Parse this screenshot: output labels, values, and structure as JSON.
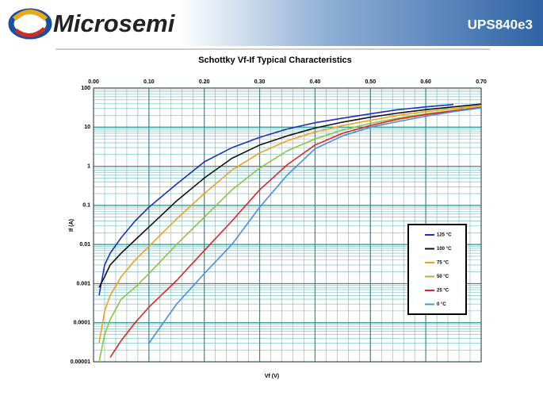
{
  "header": {
    "logo": "Microsemi",
    "part": "UPS840e3"
  },
  "chart_data": {
    "type": "line",
    "title": "Schottky Vf-If Typical Characteristics",
    "x_label": "Vf (V)",
    "y_label": "If (A)",
    "x": [
      0.01,
      0.02,
      0.03,
      0.05,
      0.075,
      0.1,
      0.15,
      0.2,
      0.25,
      0.3,
      0.35,
      0.4,
      0.45,
      0.5,
      0.55,
      0.6,
      0.65,
      0.7
    ],
    "series": [
      {
        "name": "125 °C",
        "color": "#1c2fc4",
        "values": [
          0.0005,
          0.003,
          0.006,
          0.015,
          0.04,
          0.09,
          0.35,
          1.3,
          3,
          5.5,
          9,
          13,
          17,
          22,
          28,
          33,
          38,
          null
        ]
      },
      {
        "name": "100 °C",
        "color": "#111111",
        "values": [
          0.0008,
          0.0015,
          0.003,
          0.006,
          0.013,
          0.028,
          0.13,
          0.5,
          1.6,
          3.5,
          6,
          9.5,
          13.5,
          18,
          23,
          28,
          33,
          39
        ]
      },
      {
        "name": "75 °C",
        "color": "#f0a020",
        "values": [
          3e-05,
          0.0002,
          0.0005,
          0.0015,
          0.004,
          0.009,
          0.045,
          0.2,
          0.8,
          2.2,
          4.5,
          7.5,
          11,
          15,
          20,
          25,
          30,
          36
        ]
      },
      {
        "name": "50 °C",
        "color": "#8cc43c",
        "values": [
          1e-05,
          5e-05,
          0.00012,
          0.0004,
          0.0008,
          0.0018,
          0.01,
          0.05,
          0.25,
          0.9,
          2.5,
          5,
          8.5,
          12.5,
          17,
          22,
          27,
          33
        ]
      },
      {
        "name": "25 °C",
        "color": "#e02424",
        "values": [
          null,
          null,
          1.3e-05,
          3.5e-05,
          0.0001,
          0.00025,
          0.0012,
          0.007,
          0.04,
          0.25,
          1.1,
          3.5,
          7,
          11,
          16,
          21,
          26,
          32
        ]
      },
      {
        "name": "0 °C",
        "color": "#4a8ee0",
        "values": [
          null,
          null,
          null,
          null,
          null,
          3e-05,
          0.0003,
          0.0018,
          0.01,
          0.09,
          0.6,
          2.8,
          6,
          10,
          14,
          19,
          25,
          31
        ]
      }
    ],
    "xlim": [
      0,
      0.7
    ],
    "xticks": [
      {
        "value": 0,
        "label": "0.00"
      },
      {
        "value": 0.1,
        "label": "0.10"
      },
      {
        "value": 0.2,
        "label": "0.20"
      },
      {
        "value": 0.3,
        "label": "0.30"
      },
      {
        "value": 0.4,
        "label": "0.40"
      },
      {
        "value": 0.5,
        "label": "0.50"
      },
      {
        "value": 0.6,
        "label": "0.60"
      },
      {
        "value": 0.7,
        "label": "0.70"
      }
    ],
    "ylim": [
      1e-05,
      100
    ],
    "yticks": [
      100,
      10,
      1,
      0.1,
      0.01,
      0.001,
      0.0001,
      1e-05
    ],
    "log_y": true,
    "grid": true,
    "legend": "right"
  }
}
